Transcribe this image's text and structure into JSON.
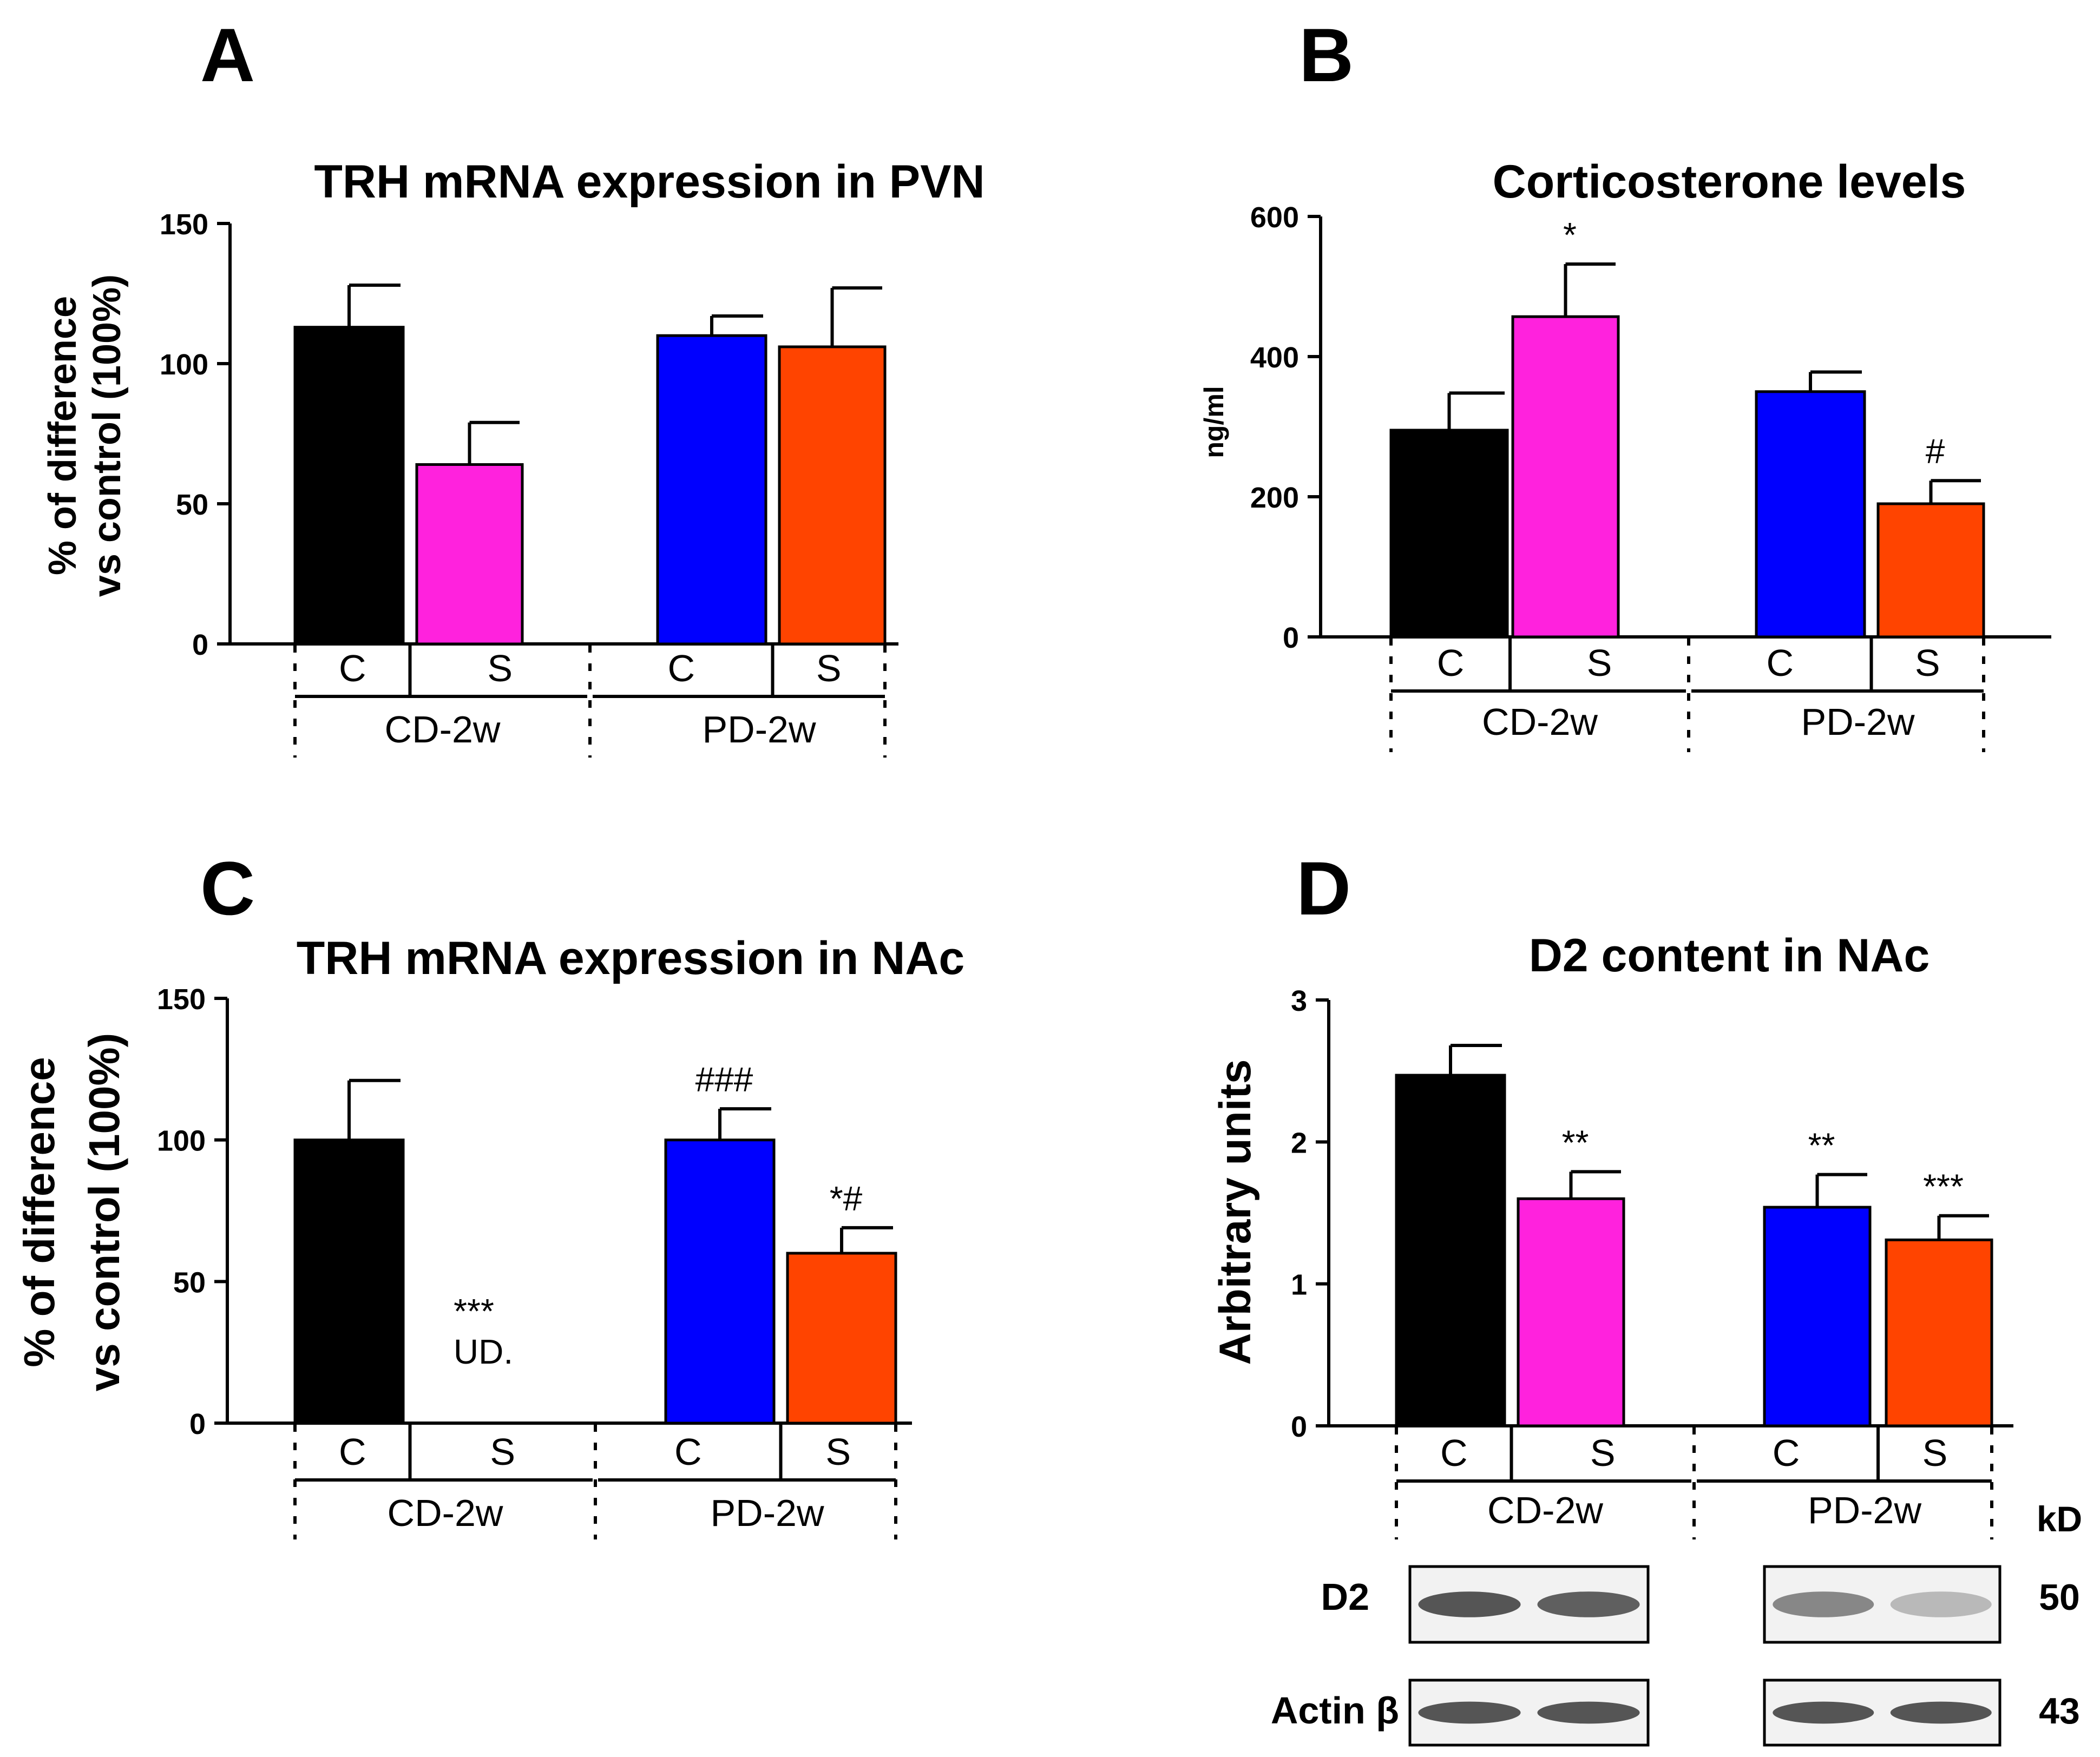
{
  "colors": {
    "cd_control": "#000000",
    "cd_stress": "#ff22dd",
    "pd_control": "#0000ff",
    "pd_stress": "#ff4400"
  },
  "chart_data": [
    {
      "panel_letter": "A",
      "type": "bar",
      "title": "TRH mRNA expression in PVN",
      "ylabel_lines": [
        "% of difference",
        "vs control (100%)"
      ],
      "ylim": [
        0,
        150
      ],
      "yticks": [
        0,
        50,
        100,
        150
      ],
      "categories": [
        "C",
        "S",
        "C",
        "S"
      ],
      "groups": [
        "CD-2w",
        "PD-2w"
      ],
      "values": [
        113,
        64,
        110,
        106
      ],
      "errors": [
        15,
        15,
        7,
        21
      ],
      "annotations": [
        "",
        "",
        "",
        ""
      ]
    },
    {
      "panel_letter": "B",
      "type": "bar",
      "title": "Corticosterone levels",
      "ylabel_lines": [
        "ng/ml"
      ],
      "ylim": [
        0,
        600
      ],
      "yticks": [
        0,
        200,
        400,
        600
      ],
      "categories": [
        "C",
        "S",
        "C",
        "S"
      ],
      "groups": [
        "CD-2w",
        "PD-2w"
      ],
      "values": [
        295,
        457,
        350,
        190
      ],
      "errors": [
        53,
        75,
        28,
        33
      ],
      "annotations": [
        "",
        "*",
        "",
        "#"
      ]
    },
    {
      "panel_letter": "C",
      "type": "bar",
      "title": "TRH mRNA expression in NAc",
      "ylabel_lines": [
        "% of difference",
        "vs control (100%)"
      ],
      "ylim": [
        0,
        150
      ],
      "yticks": [
        0,
        50,
        100,
        150
      ],
      "categories": [
        "C",
        "S",
        "C",
        "S"
      ],
      "groups": [
        "CD-2w",
        "PD-2w"
      ],
      "values": [
        100,
        0,
        100,
        60
      ],
      "errors": [
        21,
        0,
        11,
        9
      ],
      "annotations": [
        "",
        "***",
        "###",
        "*#"
      ],
      "undetected_note": "UD."
    },
    {
      "panel_letter": "D",
      "type": "bar",
      "title": "D2 content in NAc",
      "ylabel_lines": [
        "Arbitrary units"
      ],
      "ylim": [
        0,
        3
      ],
      "yticks": [
        0,
        1,
        2,
        3
      ],
      "categories": [
        "C",
        "S",
        "C",
        "S"
      ],
      "groups": [
        "CD-2w",
        "PD-2w"
      ],
      "values": [
        2.47,
        1.6,
        1.54,
        1.31
      ],
      "errors": [
        0.21,
        0.19,
        0.23,
        0.17
      ],
      "annotations": [
        "",
        "**",
        "**",
        "***"
      ]
    }
  ],
  "blot": {
    "kd_header": "kD",
    "rows": [
      {
        "label": "D2",
        "kd": "50",
        "intensities": [
          0.85,
          0.8,
          0.6,
          0.35
        ]
      },
      {
        "label": "Actin β",
        "kd": "43",
        "intensities": [
          0.85,
          0.85,
          0.85,
          0.85
        ]
      }
    ]
  }
}
